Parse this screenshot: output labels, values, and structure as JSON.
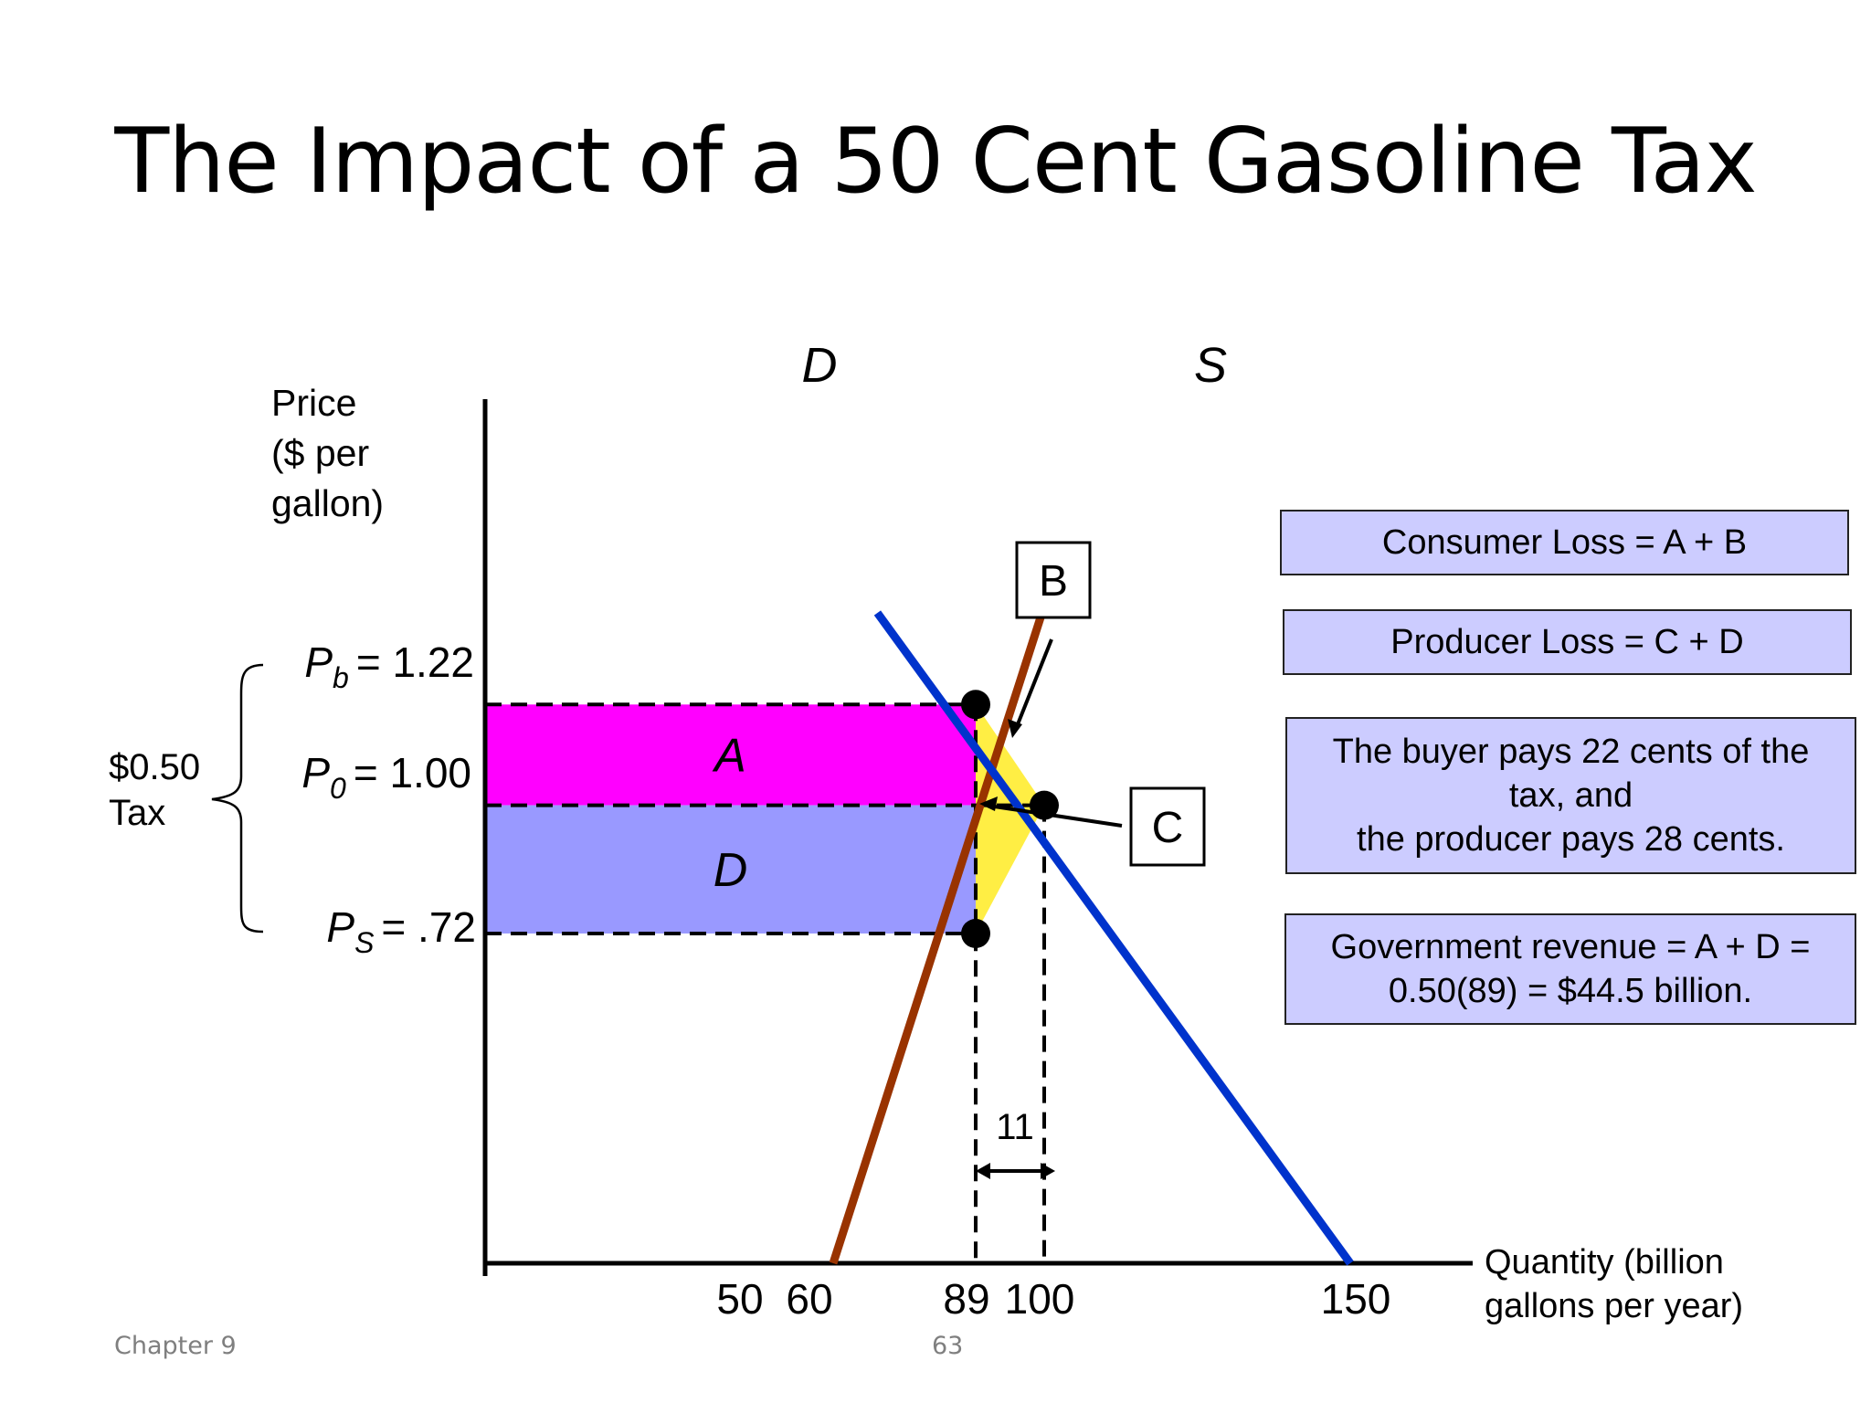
{
  "slide": {
    "title": "The Impact of a 50 Cent Gasoline Tax",
    "footer_left": "Chapter 9",
    "page_number": "63"
  },
  "chart_data": {
    "type": "line",
    "title": "",
    "ylabel_lines": [
      "Price",
      "($ per",
      "gallon)"
    ],
    "xlabel_lines": [
      "Quantity (billion",
      "gallons per year)"
    ],
    "x_ticks": [
      "50",
      "60",
      "89",
      "100",
      "150"
    ],
    "series": [
      {
        "name": "D",
        "color": "#0033cc",
        "points": [
          [
            69,
            1.42
          ],
          [
            150,
            0
          ]
        ]
      },
      {
        "name": "S",
        "color": "#993300",
        "points": [
          [
            60,
            0
          ],
          [
            103,
            1.56
          ]
        ]
      }
    ],
    "price_labels": [
      {
        "sym": "P",
        "sub": "b",
        "value": "= 1.22",
        "price": 1.22
      },
      {
        "sym": "P",
        "sub": "0",
        "value": "= 1.00",
        "price": 1.0
      },
      {
        "sym": "P",
        "sub": "S",
        "value": "= .72",
        "price": 0.72
      }
    ],
    "tax_label_lines": [
      "$0.50",
      "Tax"
    ],
    "regions": [
      {
        "label": "A",
        "color": "#ff00ff",
        "x": [
          0,
          89
        ],
        "y": [
          1.0,
          1.22
        ]
      },
      {
        "label": "D",
        "color": "#9999ff",
        "x": [
          0,
          89
        ],
        "y": [
          0.72,
          1.0
        ]
      }
    ],
    "deadweight_triangle_color": "#ffee44",
    "callouts": [
      "B",
      "C"
    ],
    "gap_label": "11",
    "key_points": [
      [
        89,
        1.22
      ],
      [
        100,
        1.0
      ],
      [
        89,
        0.72
      ]
    ]
  },
  "info_boxes": [
    {
      "lines": [
        "Consumer Loss = A + B"
      ]
    },
    {
      "lines": [
        "Producer Loss = C + D"
      ]
    },
    {
      "lines": [
        "The buyer pays 22 cents of the",
        "tax, and",
        "the producer pays 28 cents."
      ]
    },
    {
      "lines": [
        "Government revenue = A + D =",
        "0.50(89) = $44.5 billion."
      ]
    }
  ]
}
